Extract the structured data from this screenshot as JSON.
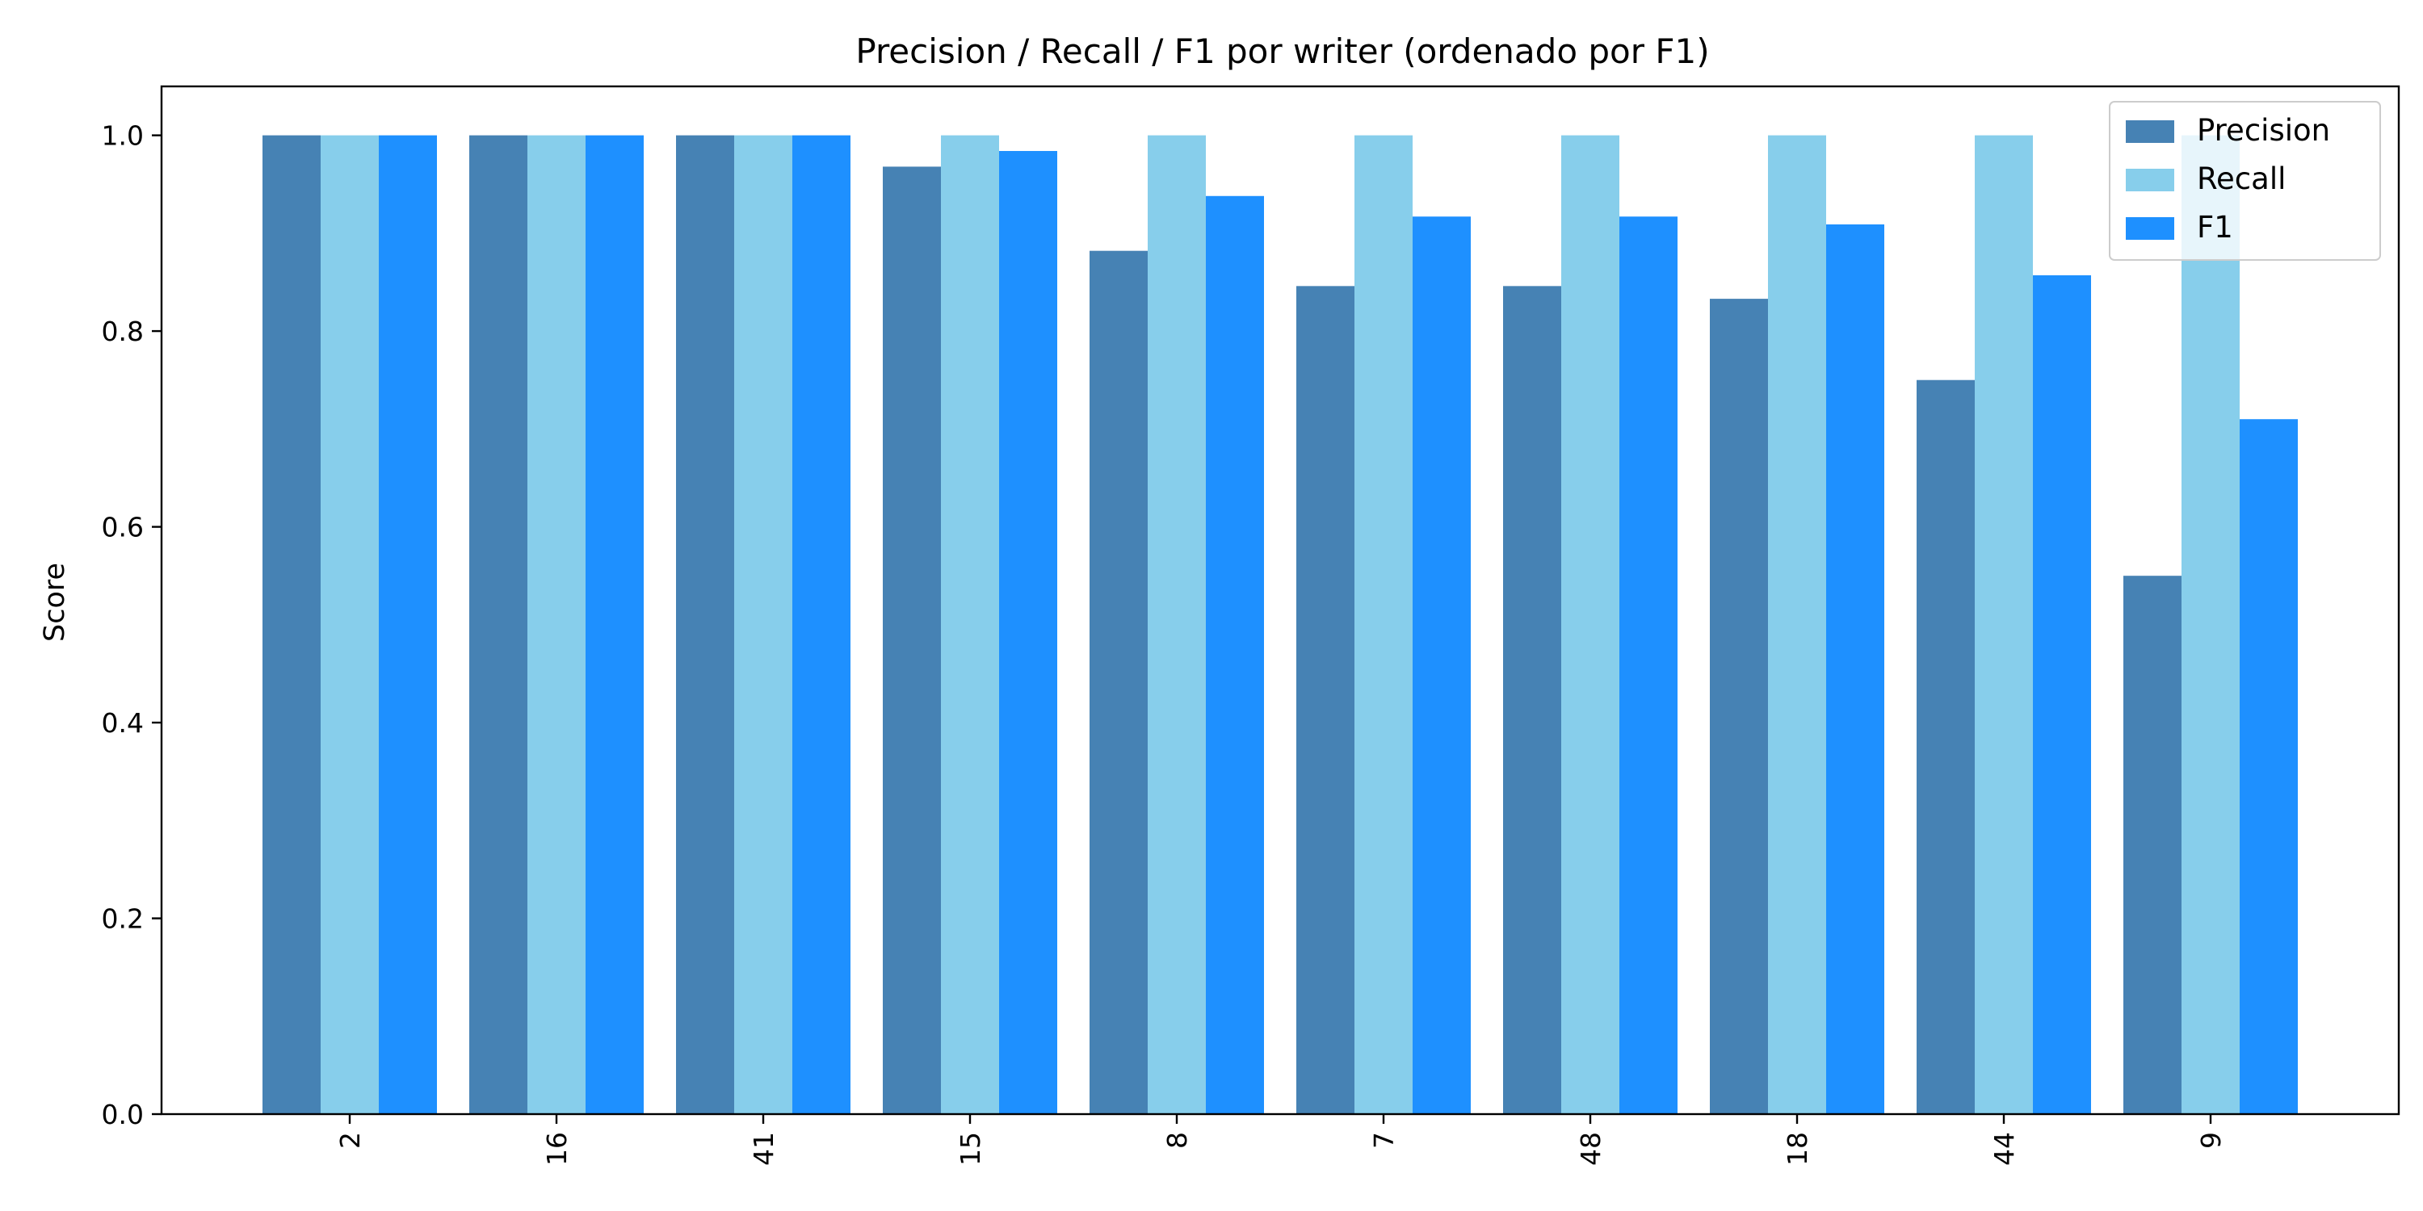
{
  "chart_data": {
    "type": "bar",
    "title": "Precision / Recall / F1 por writer (ordenado por F1)",
    "xlabel": "",
    "ylabel": "Score",
    "categories": [
      "2",
      "16",
      "41",
      "15",
      "8",
      "7",
      "48",
      "18",
      "44",
      "9"
    ],
    "series": [
      {
        "name": "Precision",
        "color": "#4682b4",
        "values": [
          1.0,
          1.0,
          1.0,
          0.968,
          0.882,
          0.846,
          0.846,
          0.833,
          0.75,
          0.55
        ]
      },
      {
        "name": "Recall",
        "color": "#87ceeb",
        "values": [
          1.0,
          1.0,
          1.0,
          1.0,
          1.0,
          1.0,
          1.0,
          1.0,
          1.0,
          1.0
        ]
      },
      {
        "name": "F1",
        "color": "#1e90ff",
        "values": [
          1.0,
          1.0,
          1.0,
          0.984,
          0.938,
          0.917,
          0.917,
          0.909,
          0.857,
          0.71
        ]
      }
    ],
    "yticks": [
      "0.0",
      "0.2",
      "0.4",
      "0.6",
      "0.8",
      "1.0"
    ],
    "ylim": [
      0,
      1.05
    ],
    "grid": false,
    "legend_position": "top-right"
  }
}
